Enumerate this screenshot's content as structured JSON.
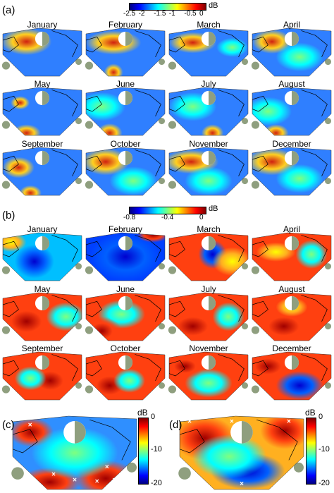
{
  "section_a": {
    "label": "(a)",
    "colorbar": {
      "unit": "dB",
      "ticks": [
        "-2.5",
        "-2",
        "-1.5",
        "-1",
        "-0.5",
        "0"
      ],
      "min": -2.5,
      "max": 0
    },
    "months": [
      "January",
      "February",
      "March",
      "April",
      "May",
      "June",
      "July",
      "August",
      "September",
      "October",
      "November",
      "December"
    ]
  },
  "section_b": {
    "label": "(b)",
    "colorbar": {
      "unit": "dB",
      "ticks": [
        "-0.8",
        "-0.4",
        "0"
      ],
      "min": -0.8,
      "max": 0
    },
    "months": [
      "January",
      "February",
      "March",
      "April",
      "May",
      "June",
      "July",
      "August",
      "September",
      "October",
      "November",
      "December"
    ]
  },
  "section_c": {
    "label": "(c)",
    "colorbar": {
      "unit": "dB",
      "ticks": [
        "0",
        "-10",
        "-20"
      ],
      "min": -20,
      "max": 0
    }
  },
  "section_d": {
    "label": "(d)",
    "colorbar": {
      "unit": "dB",
      "ticks": [
        "0",
        "-10",
        "-20"
      ],
      "min": -20,
      "max": 0
    }
  },
  "colors": {
    "jet": [
      "#00007f",
      "#0000ff",
      "#007fff",
      "#00ffff",
      "#7fff7f",
      "#ffff00",
      "#ff7f00",
      "#ff0000",
      "#7f0000"
    ],
    "land": "#8f9f7f",
    "hole": "#ffffff"
  },
  "map_style": {
    "a": {
      "base": "#2f7fff",
      "hot": "#d02010",
      "mid": "#ffd020"
    },
    "b_cool": {
      "base": "#00bfff",
      "hot": "#ff6010",
      "mid": "#7fff7f"
    },
    "b_warm": {
      "base": "#ff4010",
      "hot": "#a00000",
      "mid": "#ffd020"
    }
  }
}
